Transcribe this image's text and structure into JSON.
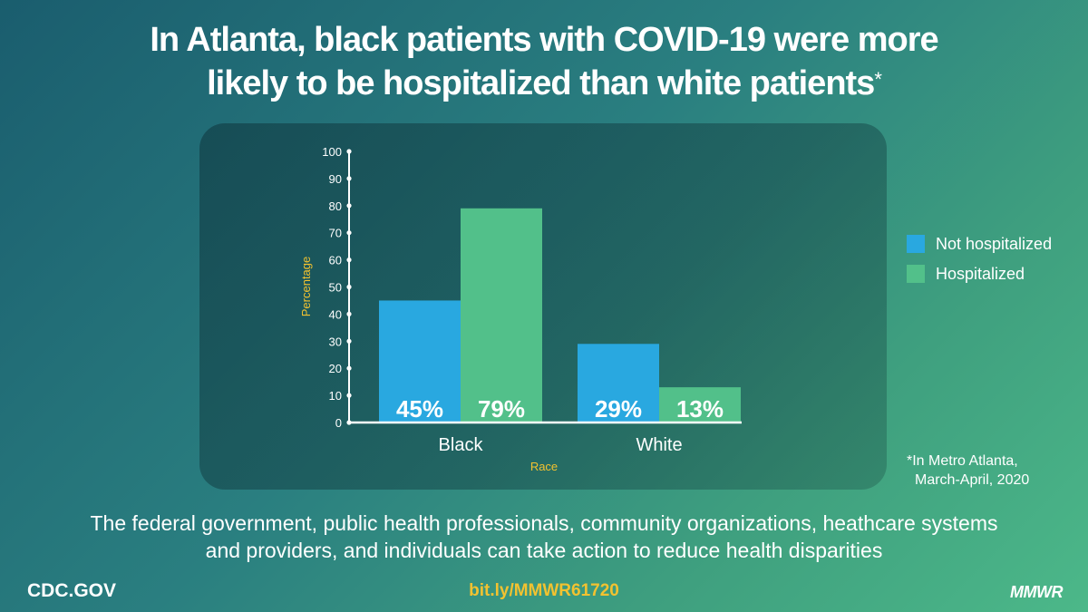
{
  "title": {
    "line1": "In Atlanta, black patients with COVID-19 were more",
    "line2": "likely to be hospitalized than white patients",
    "mark": "*"
  },
  "chart_data": {
    "type": "bar",
    "categories": [
      "Black",
      "White"
    ],
    "series": [
      {
        "name": "Not hospitalized",
        "values": [
          45,
          29
        ],
        "labels": [
          "45%",
          "29%"
        ],
        "color": "#29a8e0"
      },
      {
        "name": "Hospitalized",
        "values": [
          79,
          13
        ],
        "labels": [
          "79%",
          "13%"
        ],
        "color": "#52c08a"
      }
    ],
    "yticks": [
      0,
      10,
      20,
      30,
      40,
      50,
      60,
      70,
      80,
      90,
      100
    ],
    "ylim": [
      0,
      100
    ],
    "xlabel": "Race",
    "ylabel": "Percentage",
    "axis_label_color": "#f2c230",
    "legend_position": "right"
  },
  "footnote": {
    "line1": "*In Metro Atlanta,",
    "line2": "March-April, 2020"
  },
  "message": {
    "line1": "The federal government, public health professionals, community organizations, heathcare systems",
    "line2": "and providers, and individuals can take action to reduce health disparities"
  },
  "footer": {
    "site": "CDC.GOV",
    "link": "bit.ly/MMWR61720",
    "brand": "MMWR"
  }
}
